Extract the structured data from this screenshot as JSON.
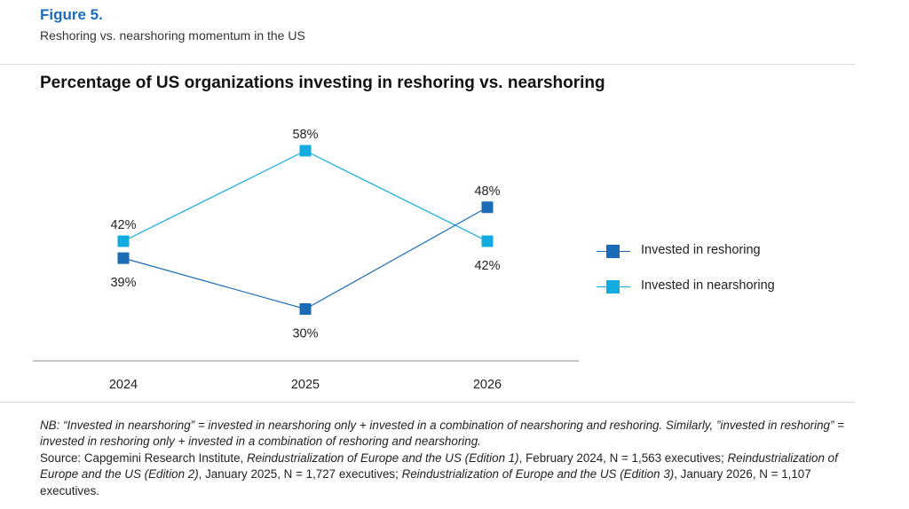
{
  "figure": {
    "label": "Figure 5.",
    "subtitle": "Reshoring vs. nearshoring momentum in the US"
  },
  "chart_data": {
    "type": "line",
    "title": "Percentage of US organizations investing in reshoring vs. nearshoring",
    "categories": [
      "2024",
      "2025",
      "2026"
    ],
    "series": [
      {
        "name": "Invested in reshoring",
        "values": [
          39,
          30,
          48
        ],
        "labels": [
          "39%",
          "30%",
          "48%"
        ],
        "color": "#1a6cb7"
      },
      {
        "name": "Invested in nearshoring",
        "values": [
          42,
          58,
          42
        ],
        "labels": [
          "42%",
          "58%",
          "42%"
        ],
        "color": "#12ace0"
      }
    ],
    "legend_position": "right",
    "grid": false
  },
  "notes": {
    "nb": "NB: “Invested in nearshoring” = invested in nearshoring only + invested in a combination of nearshoring and reshoring. Similarly, ”invested in reshoring” = invested in reshoring only + invested in a combination of reshoring and nearshoring.",
    "source_prefix": "Source: Capgemini Research Institute, ",
    "s1_title": "Reindustrialization of Europe and the US (Edition 1)",
    "s1_rest": ", February 2024, N = 1,563 executives; ",
    "s2_title": "Reindustrialization of Europe and the US (Edition 2)",
    "s2_rest": ", January 2025, N = 1,727 executives; ",
    "s3_title": "Reindustrialization of Europe and the US (Edition 3)",
    "s3_rest": ", January 2026, N = 1,107 executives."
  }
}
